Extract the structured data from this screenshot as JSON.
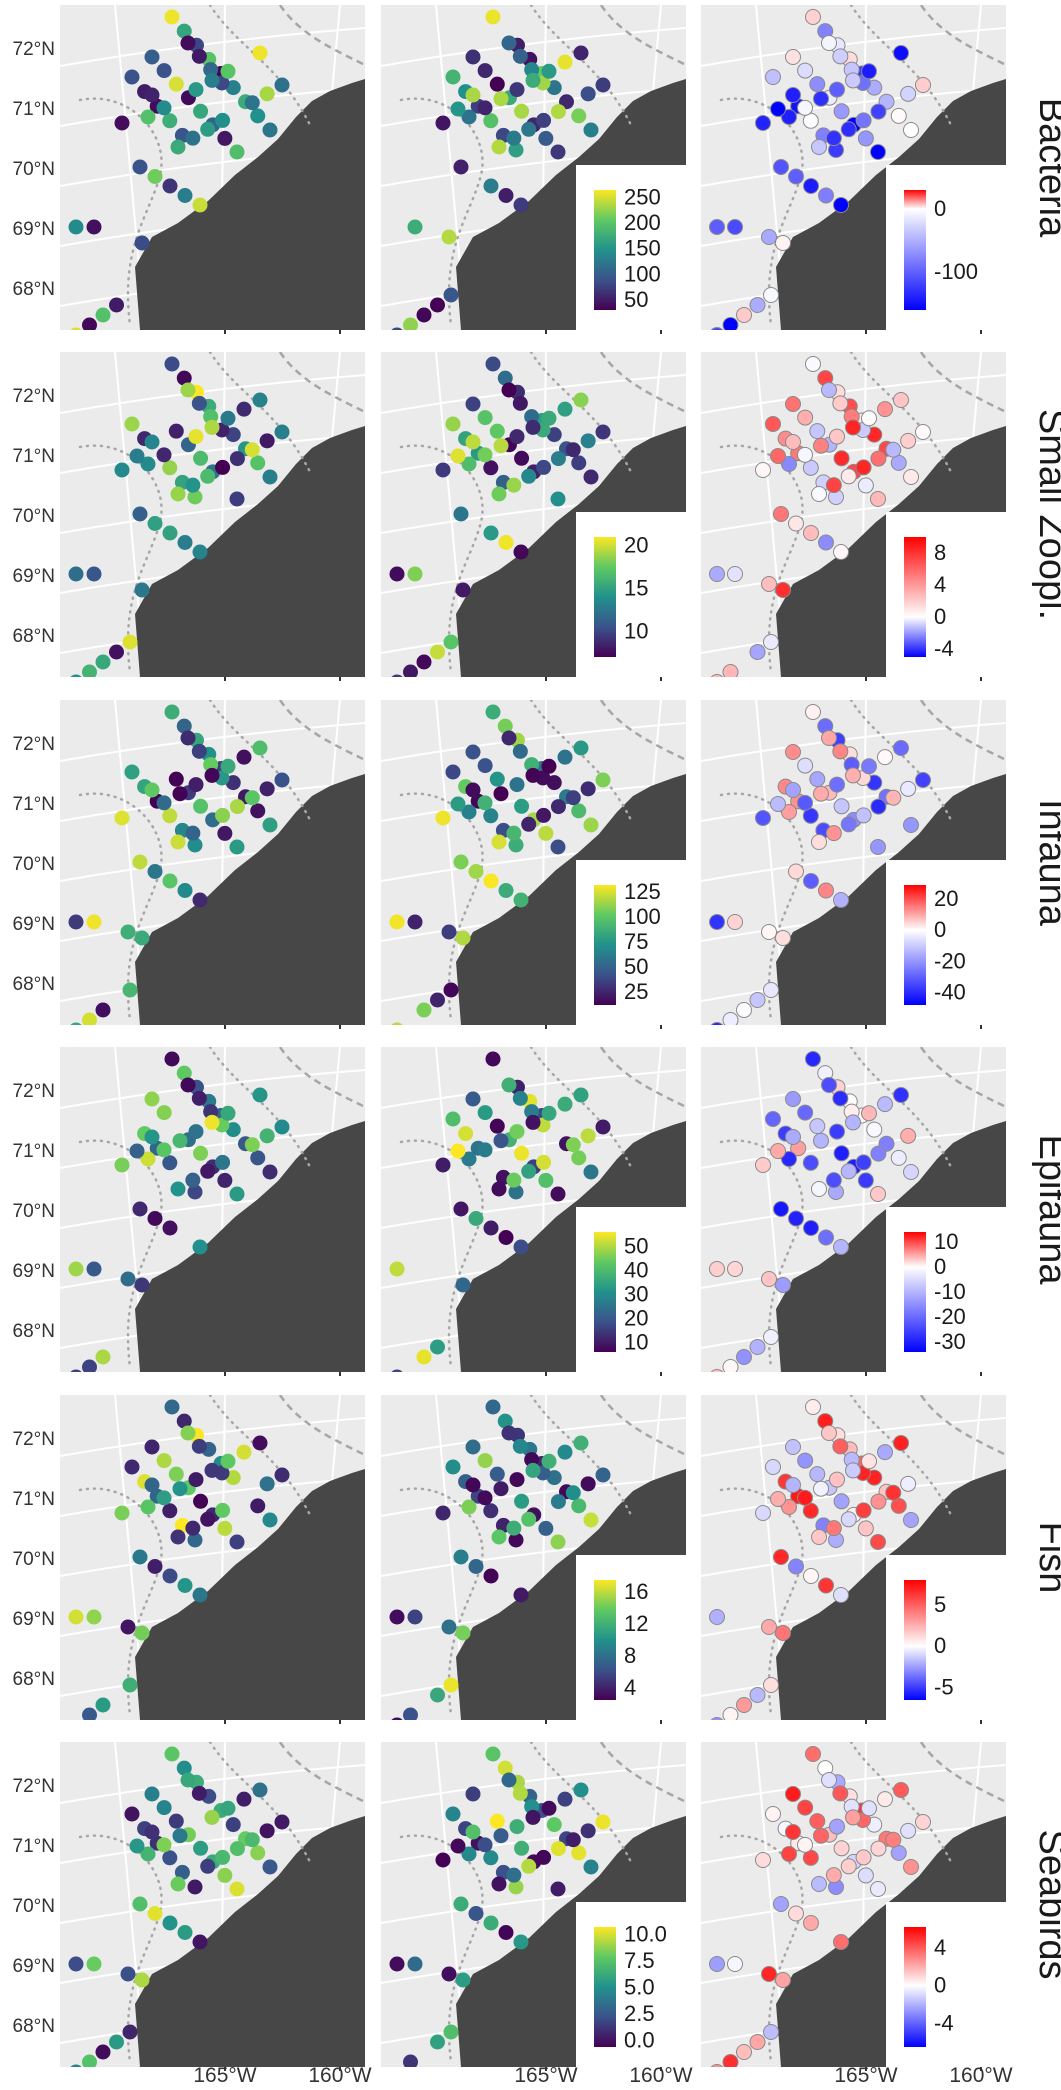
{
  "figure": {
    "latitude_labels": [
      "72°N",
      "71°N",
      "70°N",
      "69°N",
      "68°N"
    ],
    "longitude_labels": [
      "165°W",
      "160°W"
    ],
    "colors": {
      "ocean": "#ebebeb",
      "land": "#474747",
      "grid": "#ffffff",
      "boundary": "#a6a6a6"
    },
    "scales": {
      "viridis": [
        "#440154",
        "#3b528b",
        "#21918c",
        "#5ec962",
        "#fde725"
      ],
      "diverging": [
        "#0000ff",
        "#ffffff",
        "#ff0000"
      ]
    },
    "rows": [
      {
        "label": "Bacteria",
        "legend_mid": {
          "ticks": [
            "250",
            "200",
            "150",
            "100",
            "50"
          ],
          "range": [
            30,
            265
          ]
        },
        "legend_diff": {
          "ticks": [
            "0",
            "-100"
          ],
          "range": [
            -160,
            30
          ]
        }
      },
      {
        "label": "Small Zoopl.",
        "legend_mid": {
          "ticks": [
            "20",
            "15",
            "10"
          ],
          "range": [
            7,
            21
          ]
        },
        "legend_diff": {
          "ticks": [
            "8",
            "4",
            "0",
            "-4"
          ],
          "range": [
            -5,
            10
          ]
        }
      },
      {
        "label": "Infauna",
        "legend_mid": {
          "ticks": [
            "125",
            "100",
            "75",
            "50",
            "25"
          ],
          "range": [
            12,
            132
          ]
        },
        "legend_diff": {
          "ticks": [
            "20",
            "0",
            "-20",
            "-40"
          ],
          "range": [
            -48,
            29
          ]
        }
      },
      {
        "label": "Epifauna",
        "legend_mid": {
          "ticks": [
            "50",
            "40",
            "30",
            "20",
            "10"
          ],
          "range": [
            6,
            56
          ]
        },
        "legend_diff": {
          "ticks": [
            "10",
            "0",
            "-10",
            "-20",
            "-30"
          ],
          "range": [
            -34,
            14
          ]
        }
      },
      {
        "label": "Fish",
        "legend_mid": {
          "ticks": [
            "16",
            "12",
            "8",
            "4"
          ],
          "range": [
            2.5,
            17.5
          ]
        },
        "legend_diff": {
          "ticks": [
            "5",
            "0",
            "-5"
          ],
          "range": [
            -6.5,
            8
          ]
        }
      },
      {
        "label": "Seabirds",
        "legend_mid": {
          "ticks": [
            "10.0",
            "7.5",
            "5.0",
            "2.5",
            "0.0"
          ],
          "range": [
            -0.6,
            10.7
          ]
        },
        "legend_diff": {
          "ticks": [
            "4",
            "0",
            "-4"
          ],
          "range": [
            -6.5,
            6.2
          ]
        }
      }
    ]
  }
}
